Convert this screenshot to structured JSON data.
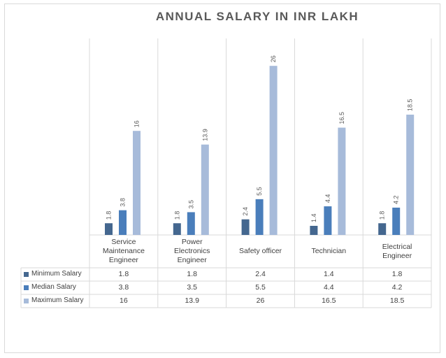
{
  "chart_data": {
    "type": "bar",
    "title": "ANNUAL SALARY IN INR LAKH",
    "categories": [
      "Service Maintenance Engineer",
      "Power Electronics Engineer",
      "Safety officer",
      "Technician",
      "Electrical Engineer"
    ],
    "category_lines": [
      [
        "Service",
        "Maintenance",
        "Engineer"
      ],
      [
        "Power",
        "Electronics",
        "Engineer"
      ],
      [
        "Safety officer"
      ],
      [
        "Technician"
      ],
      [
        "Electrical",
        "Engineer"
      ]
    ],
    "series": [
      {
        "name": "Minimum Salary",
        "color": "#44678f",
        "values": [
          1.8,
          1.8,
          2.4,
          1.4,
          1.8
        ],
        "labels": [
          "1.8",
          "1.8",
          "2.4",
          "1.4",
          "1.8"
        ]
      },
      {
        "name": "Median Salary",
        "color": "#4a7ebb",
        "values": [
          3.8,
          3.5,
          5.5,
          4.4,
          4.2
        ],
        "labels": [
          "3.8",
          "3.5",
          "5.5",
          "4.4",
          "4.2"
        ]
      },
      {
        "name": "Maximum Salary",
        "color": "#a7bbda",
        "values": [
          16,
          13.9,
          26,
          16.5,
          18.5
        ],
        "labels": [
          "16",
          "13.9",
          "26",
          "16.5",
          "18.5"
        ]
      }
    ],
    "ylim": [
      0,
      28
    ],
    "grid": true,
    "data_labels": true,
    "data_table": true,
    "legend": "left of data table"
  }
}
